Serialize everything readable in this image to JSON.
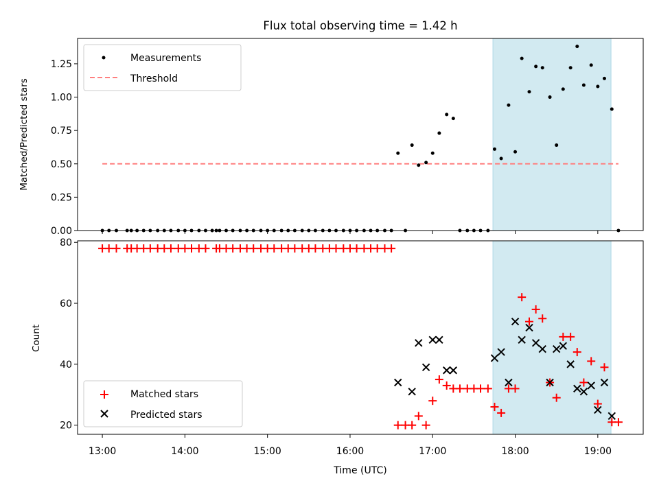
{
  "title": "Flux total observing time = 1.42 h",
  "xlabel": "Time (UTC)",
  "x_ticks": [
    {
      "t": 13.0,
      "label": "13:00"
    },
    {
      "t": 14.0,
      "label": "14:00"
    },
    {
      "t": 15.0,
      "label": "15:00"
    },
    {
      "t": 16.0,
      "label": "16:00"
    },
    {
      "t": 17.0,
      "label": "17:00"
    },
    {
      "t": 18.0,
      "label": "18:00"
    },
    {
      "t": 19.0,
      "label": "19:00"
    }
  ],
  "colors": {
    "measurements": "#000000",
    "threshold": "#ff7f7f",
    "matched": "#ff0000",
    "predicted": "#000000",
    "shade": "#add8e6"
  },
  "chart_data": [
    {
      "type": "scatter",
      "ylabel": "Matched/Predicted stars",
      "ylim": [
        0,
        1.44
      ],
      "xlim": [
        12.7,
        19.55
      ],
      "y_ticks": [
        "0.00",
        "0.25",
        "0.50",
        "0.75",
        "1.00",
        "1.25"
      ],
      "shaded_span": [
        17.73,
        19.16
      ],
      "legend": {
        "position": "upper-left",
        "entries": [
          "Measurements",
          "Threshold"
        ]
      },
      "threshold": {
        "name": "Threshold",
        "x": [
          13.0,
          19.25
        ],
        "y": 0.5
      },
      "series": [
        {
          "name": "Measurements",
          "x": [
            13.0,
            13.08,
            13.17,
            13.3,
            13.35,
            13.42,
            13.5,
            13.58,
            13.67,
            13.75,
            13.83,
            13.92,
            14.0,
            14.08,
            14.17,
            14.25,
            14.33,
            14.38,
            14.42,
            14.5,
            14.58,
            14.67,
            14.75,
            14.83,
            14.92,
            15.0,
            15.08,
            15.17,
            15.25,
            15.33,
            15.42,
            15.5,
            15.58,
            15.67,
            15.75,
            15.83,
            15.92,
            16.0,
            16.08,
            16.17,
            16.25,
            16.33,
            16.42,
            16.5,
            16.58,
            16.67,
            16.75,
            16.83,
            16.92,
            17.0,
            17.08,
            17.17,
            17.25,
            17.33,
            17.42,
            17.5,
            17.58,
            17.67,
            17.75,
            17.83,
            17.92,
            18.0,
            18.08,
            18.17,
            18.25,
            18.33,
            18.42,
            18.5,
            18.58,
            18.67,
            18.75,
            18.83,
            18.92,
            19.0,
            19.08,
            19.17,
            19.25
          ],
          "y": [
            0,
            0,
            0,
            0,
            0,
            0,
            0,
            0,
            0,
            0,
            0,
            0,
            0,
            0,
            0,
            0,
            0,
            0,
            0,
            0,
            0,
            0,
            0,
            0,
            0,
            0,
            0,
            0,
            0,
            0,
            0,
            0,
            0,
            0,
            0,
            0,
            0,
            0,
            0,
            0,
            0,
            0,
            0,
            0,
            0.58,
            0,
            0.64,
            0.49,
            0.51,
            0.58,
            0.73,
            0.87,
            0.84,
            0,
            0,
            0,
            0,
            0,
            0.61,
            0.54,
            0.94,
            0.59,
            1.29,
            1.04,
            1.23,
            1.22,
            1.0,
            0.64,
            1.06,
            1.22,
            1.38,
            1.09,
            1.24,
            1.08,
            1.14,
            0.91,
            0
          ]
        }
      ]
    },
    {
      "type": "scatter",
      "ylabel": "Count",
      "ylim": [
        17,
        80.5
      ],
      "xlim": [
        12.7,
        19.55
      ],
      "y_ticks": [
        "20",
        "40",
        "60",
        "80"
      ],
      "shaded_span": [
        17.73,
        19.16
      ],
      "legend": {
        "position": "lower-left",
        "entries": [
          "Matched stars",
          "Predicted stars"
        ]
      },
      "series": [
        {
          "name": "Matched stars",
          "marker": "+",
          "x": [
            13.0,
            13.08,
            13.17,
            13.3,
            13.35,
            13.42,
            13.5,
            13.58,
            13.67,
            13.75,
            13.83,
            13.92,
            14.0,
            14.08,
            14.17,
            14.25,
            14.38,
            14.42,
            14.5,
            14.58,
            14.67,
            14.75,
            14.83,
            14.92,
            15.0,
            15.08,
            15.17,
            15.25,
            15.33,
            15.42,
            15.5,
            15.58,
            15.67,
            15.75,
            15.83,
            15.92,
            16.0,
            16.08,
            16.17,
            16.25,
            16.33,
            16.42,
            16.5,
            16.58,
            16.67,
            16.75,
            16.83,
            16.92,
            17.0,
            17.08,
            17.17,
            17.25,
            17.33,
            17.42,
            17.5,
            17.58,
            17.67,
            17.75,
            17.83,
            17.92,
            18.0,
            18.08,
            18.17,
            18.25,
            18.33,
            18.42,
            18.5,
            18.58,
            18.67,
            18.75,
            18.83,
            18.92,
            19.0,
            19.08,
            19.17,
            19.25
          ],
          "y": [
            78,
            78,
            78,
            78,
            78,
            78,
            78,
            78,
            78,
            78,
            78,
            78,
            78,
            78,
            78,
            78,
            78,
            78,
            78,
            78,
            78,
            78,
            78,
            78,
            78,
            78,
            78,
            78,
            78,
            78,
            78,
            78,
            78,
            78,
            78,
            78,
            78,
            78,
            78,
            78,
            78,
            78,
            78,
            20,
            20,
            20,
            23,
            20,
            28,
            35,
            33,
            32,
            32,
            32,
            32,
            32,
            32,
            26,
            24,
            32,
            32,
            62,
            54,
            58,
            55,
            34,
            29,
            49,
            49,
            44,
            34,
            41,
            27,
            39,
            21,
            21
          ]
        },
        {
          "name": "Predicted stars",
          "marker": "x",
          "x": [
            16.58,
            16.75,
            16.83,
            16.92,
            17.0,
            17.08,
            17.17,
            17.25,
            17.75,
            17.83,
            17.92,
            18.0,
            18.08,
            18.17,
            18.25,
            18.33,
            18.42,
            18.5,
            18.58,
            18.67,
            18.75,
            18.83,
            18.92,
            19.0,
            19.08,
            19.17
          ],
          "y": [
            34,
            31,
            47,
            39,
            48,
            48,
            38,
            38,
            42,
            44,
            34,
            54,
            48,
            52,
            47,
            45,
            34,
            45,
            46,
            40,
            32,
            31,
            33,
            25,
            34,
            23
          ]
        }
      ]
    }
  ]
}
